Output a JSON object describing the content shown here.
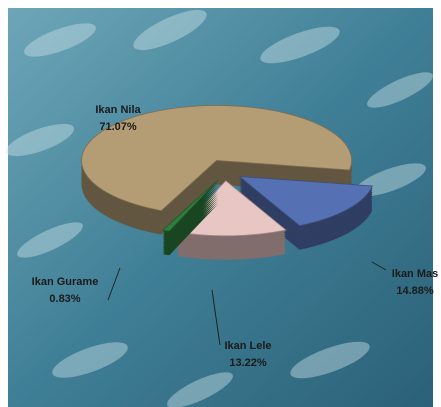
{
  "chart_data": {
    "type": "pie",
    "categories": [
      "Ikan Nila",
      "Ikan Mas",
      "Ikan Lele",
      "Ikan Gurame"
    ],
    "values": [
      71.07,
      14.88,
      13.22,
      0.83
    ],
    "value_labels": [
      "71.07%",
      "14.88%",
      "13.22%",
      "0.83%"
    ],
    "colors": [
      "#b49c74",
      "#5570b3",
      "#e8c6c4",
      "#2f7d3c"
    ]
  }
}
